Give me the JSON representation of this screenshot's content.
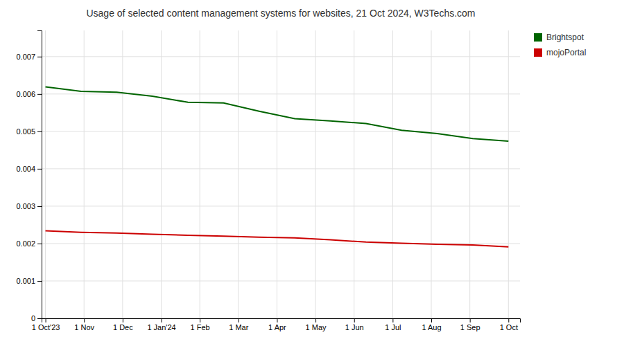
{
  "chart_data": {
    "type": "line",
    "title": "Usage of selected content management systems for websites, 21 Oct 2024, W3Techs.com",
    "x": [
      0,
      0.9230769230769231,
      1.8461538461538463,
      2.769230769230769,
      3.6923076923076925,
      4.615384615384615,
      5.538461538461538,
      6.461538461538462,
      7.384615384615385,
      8.307692307692308,
      9.23076923076923,
      10.153846153846153,
      11.076923076923077,
      12
    ],
    "series": [
      {
        "name": "Brightspot",
        "color": "#006400",
        "values": [
          0.00619,
          0.00607,
          0.00605,
          0.00594,
          0.00578,
          0.00576,
          0.00554,
          0.00534,
          0.00528,
          0.00521,
          0.00503,
          0.00494,
          0.00481,
          0.00474
        ]
      },
      {
        "name": "mojoPortal",
        "color": "#cc0000",
        "values": [
          0.00234,
          0.0023,
          0.00228,
          0.00225,
          0.00222,
          0.0022,
          0.00217,
          0.00215,
          0.0021,
          0.00204,
          0.00201,
          0.00198,
          0.00196,
          0.00191
        ]
      }
    ],
    "xlim": [
      -0.1,
      12.3
    ],
    "xticks": [
      {
        "value": 0,
        "label": "1 Oct'23"
      },
      {
        "value": 1,
        "label": "1 Nov"
      },
      {
        "value": 2,
        "label": "1 Dec"
      },
      {
        "value": 3,
        "label": "1 Jan'24"
      },
      {
        "value": 4,
        "label": "1 Feb"
      },
      {
        "value": 5,
        "label": "1 Mar"
      },
      {
        "value": 6,
        "label": "1 Apr"
      },
      {
        "value": 7,
        "label": "1 May"
      },
      {
        "value": 8,
        "label": "1 Jun"
      },
      {
        "value": 9,
        "label": "1 Jul"
      },
      {
        "value": 10,
        "label": "1 Aug"
      },
      {
        "value": 11,
        "label": "1 Sep"
      },
      {
        "value": 12,
        "label": "1 Oct"
      }
    ],
    "ylim": [
      0,
      0.0077
    ],
    "yticks": [
      0,
      0.001,
      0.002,
      0.003,
      0.004,
      0.005,
      0.006,
      0.007
    ],
    "grid": true,
    "legend": "right"
  }
}
